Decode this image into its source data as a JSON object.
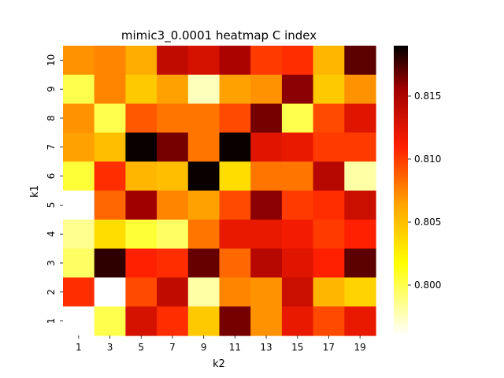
{
  "chart_data": {
    "type": "heatmap",
    "title": "mimic3_0.0001 heatmap C index",
    "xlabel": "k2",
    "ylabel": "k1",
    "x_categories": [
      "1",
      "3",
      "5",
      "7",
      "9",
      "11",
      "13",
      "15",
      "17",
      "19"
    ],
    "y_categories": [
      "10",
      "9",
      "8",
      "7",
      "6",
      "5",
      "4",
      "3",
      "2",
      "1"
    ],
    "values": [
      [
        0.807,
        0.8075,
        0.806,
        0.814,
        0.813,
        0.815,
        0.81,
        0.8105,
        0.8055,
        0.817
      ],
      [
        0.8,
        0.8075,
        0.8045,
        0.8065,
        0.7975,
        0.8065,
        0.807,
        0.816,
        0.8045,
        0.807
      ],
      [
        0.807,
        0.8,
        0.809,
        0.808,
        0.808,
        0.8095,
        0.8165,
        0.8,
        0.8095,
        0.8125
      ],
      [
        0.8065,
        0.805,
        0.8188,
        0.8165,
        0.808,
        0.8188,
        0.8125,
        0.812,
        0.81,
        0.81
      ],
      [
        0.8005,
        0.8105,
        0.8055,
        0.805,
        0.8188,
        0.8035,
        0.808,
        0.808,
        0.8145,
        0.798
      ],
      [
        0.796,
        0.8085,
        0.8155,
        0.8075,
        0.8065,
        0.8095,
        0.816,
        0.81,
        0.8105,
        0.8135
      ],
      [
        0.7985,
        0.8035,
        0.8005,
        0.7995,
        0.808,
        0.812,
        0.812,
        0.8115,
        0.81,
        0.811
      ],
      [
        0.7995,
        0.818,
        0.811,
        0.8105,
        0.8168,
        0.8085,
        0.8145,
        0.8125,
        0.811,
        0.817
      ],
      [
        0.8105,
        0.796,
        0.8095,
        0.814,
        0.798,
        0.8075,
        0.807,
        0.8135,
        0.8055,
        0.804
      ],
      [
        0.796,
        0.8,
        0.813,
        0.8105,
        0.8045,
        0.8165,
        0.807,
        0.812,
        0.8095,
        0.812
      ]
    ],
    "colorbar": {
      "range": [
        0.796,
        0.819
      ],
      "ticks": [
        "0.800",
        "0.805",
        "0.810",
        "0.815"
      ],
      "tick_values": [
        0.8,
        0.805,
        0.81,
        0.815
      ],
      "colormap": "hot_r"
    }
  }
}
